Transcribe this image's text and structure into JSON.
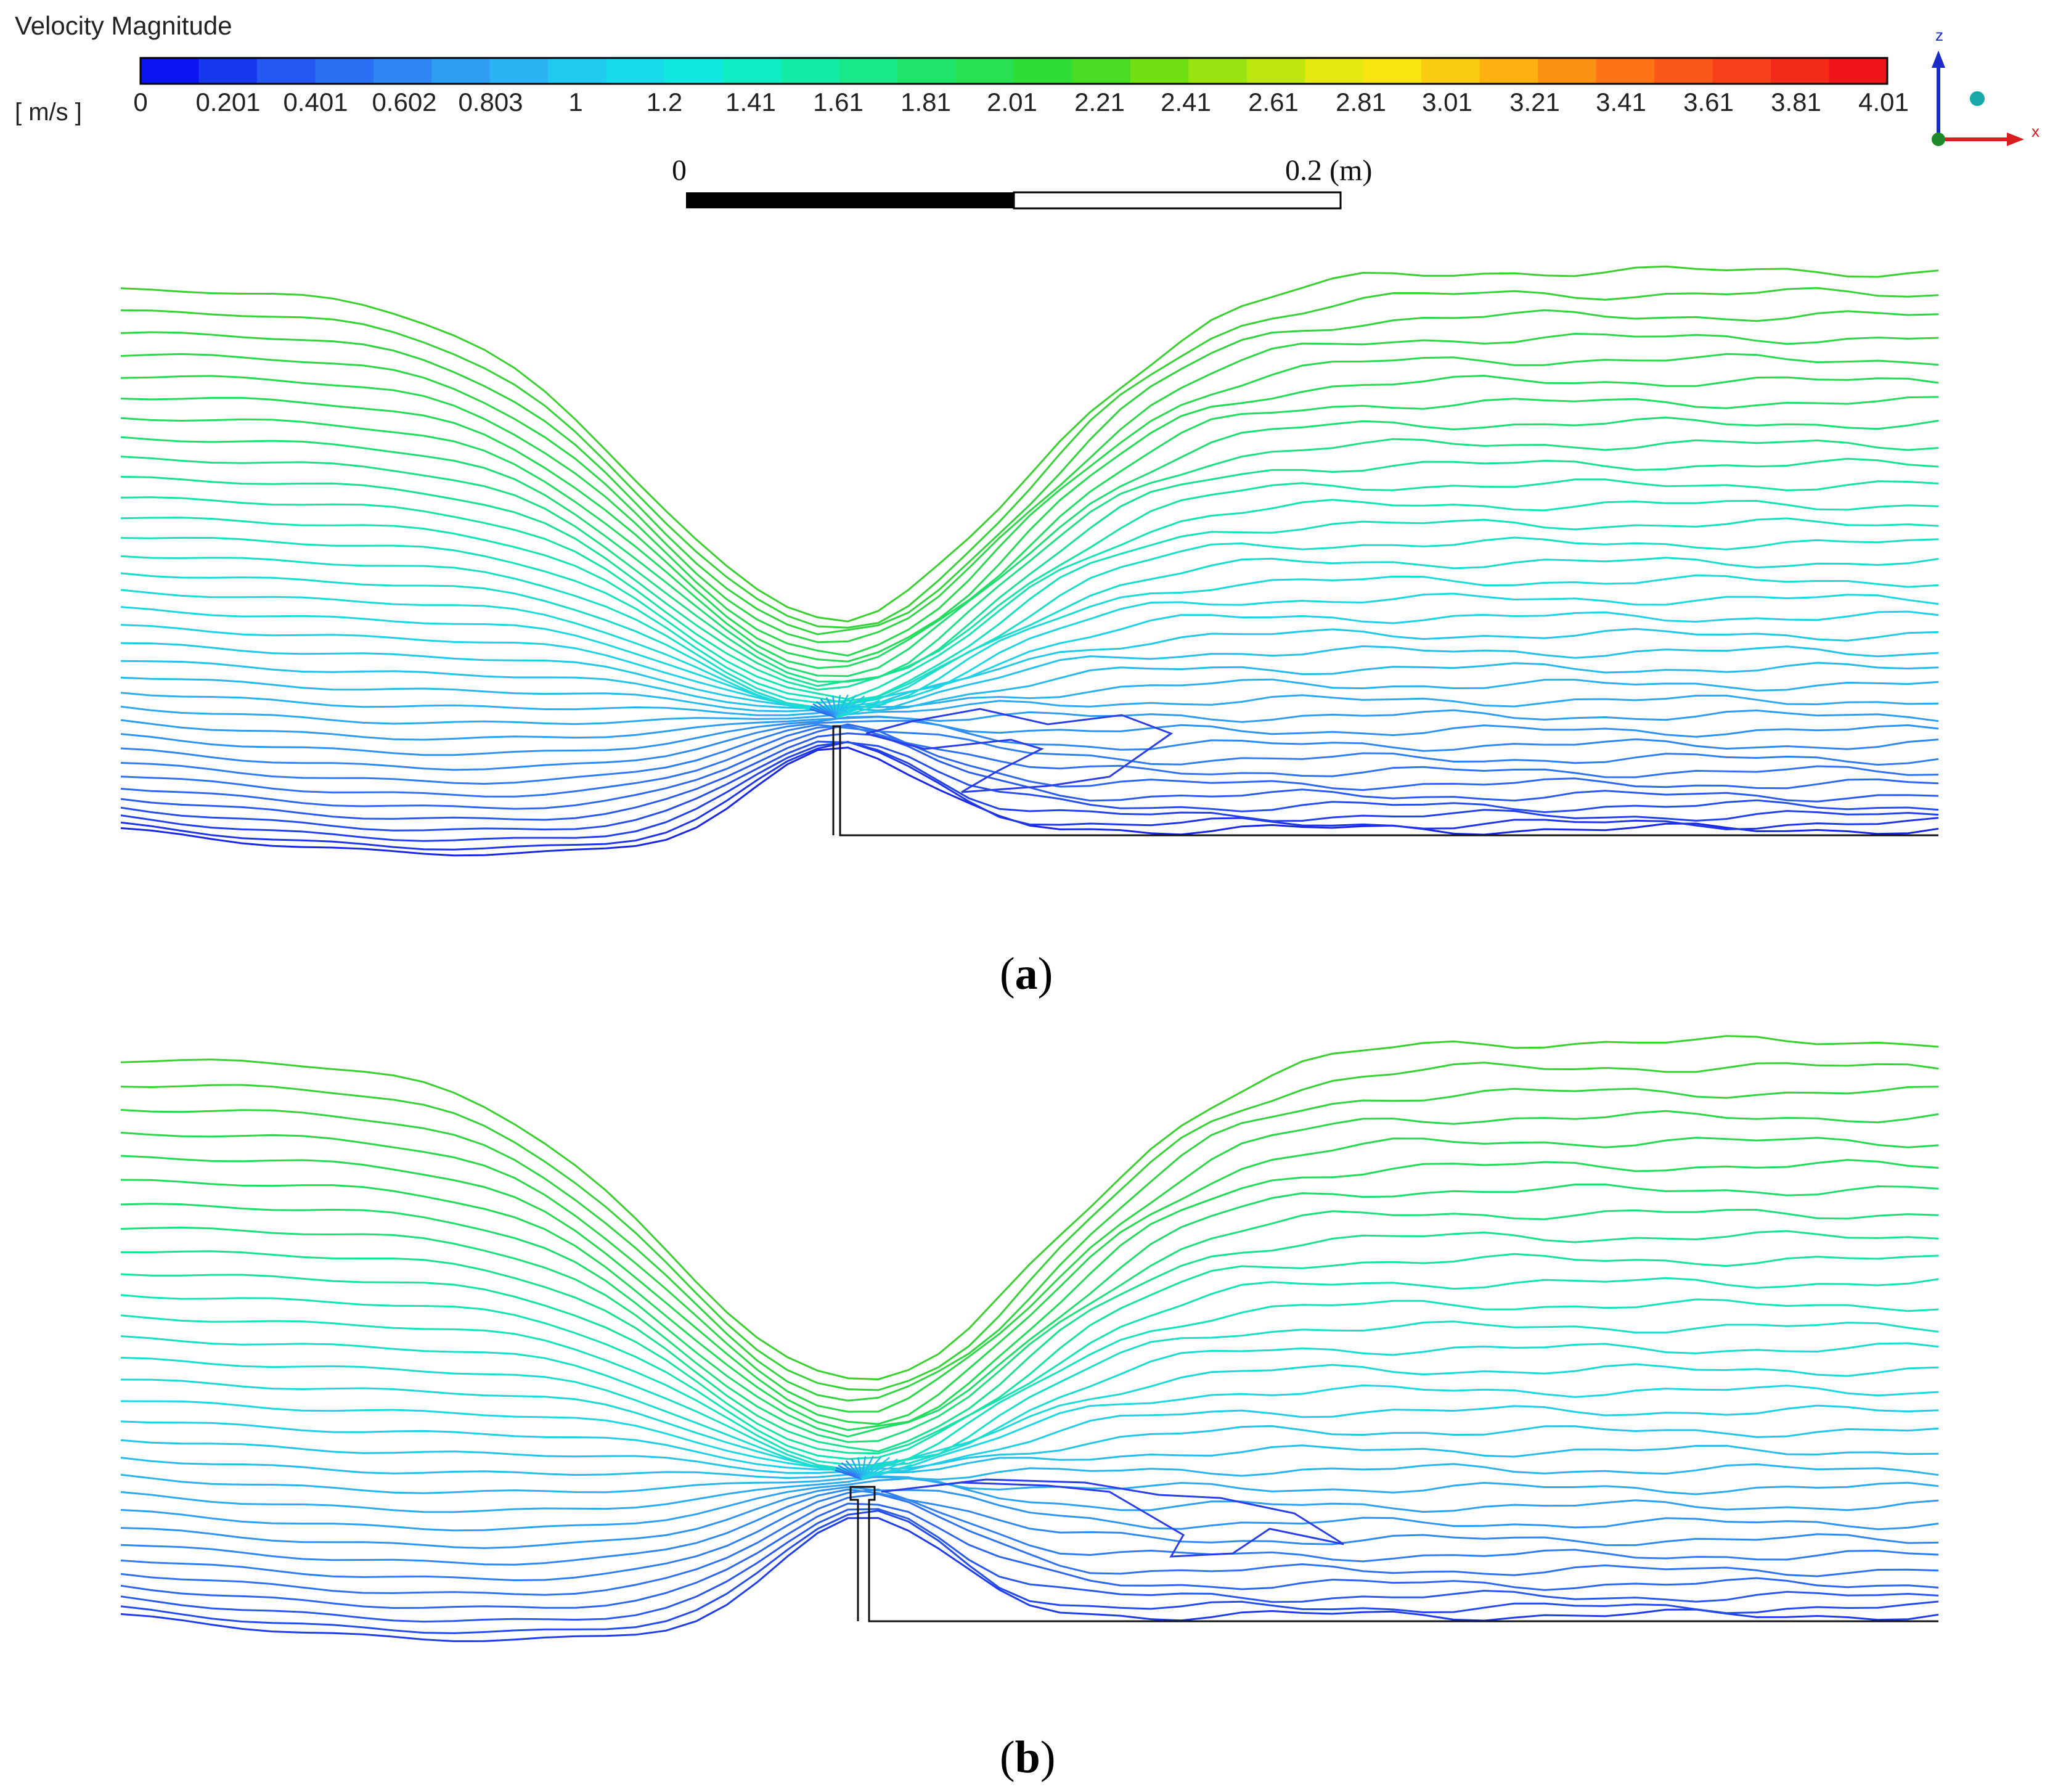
{
  "legend": {
    "title": "Velocity Magnitude",
    "unit": "[ m/s ]",
    "ticks": [
      "0",
      "0.201",
      "0.401",
      "0.602",
      "0.803",
      "1",
      "1.2",
      "1.41",
      "1.61",
      "1.81",
      "2.01",
      "2.21",
      "2.41",
      "2.61",
      "2.81",
      "3.01",
      "3.21",
      "3.41",
      "3.61",
      "3.81",
      "4.01"
    ],
    "colors": [
      "#0a14f0",
      "#1838f0",
      "#2456f0",
      "#2a6ef2",
      "#2f86f2",
      "#2f9ef2",
      "#2cb4f2",
      "#22caf0",
      "#18dcec",
      "#10e8e0",
      "#10ecc4",
      "#12eca6",
      "#18e888",
      "#20e46a",
      "#28e050",
      "#30dc38",
      "#48dc22",
      "#70e014",
      "#98e410",
      "#c0e610",
      "#e4e810",
      "#f8e410",
      "#fccc10",
      "#fcb012",
      "#fc9214",
      "#fc7416",
      "#fa5818",
      "#f8401a",
      "#f42a1a",
      "#f0141a"
    ]
  },
  "scale_bar": {
    "start_label": "0",
    "end_label": "0.2 (m)"
  },
  "axes_triad": {
    "z_label": "z",
    "x_label": "x"
  },
  "panels": [
    {
      "caption_letter": "a"
    },
    {
      "caption_letter": "b"
    }
  ]
}
